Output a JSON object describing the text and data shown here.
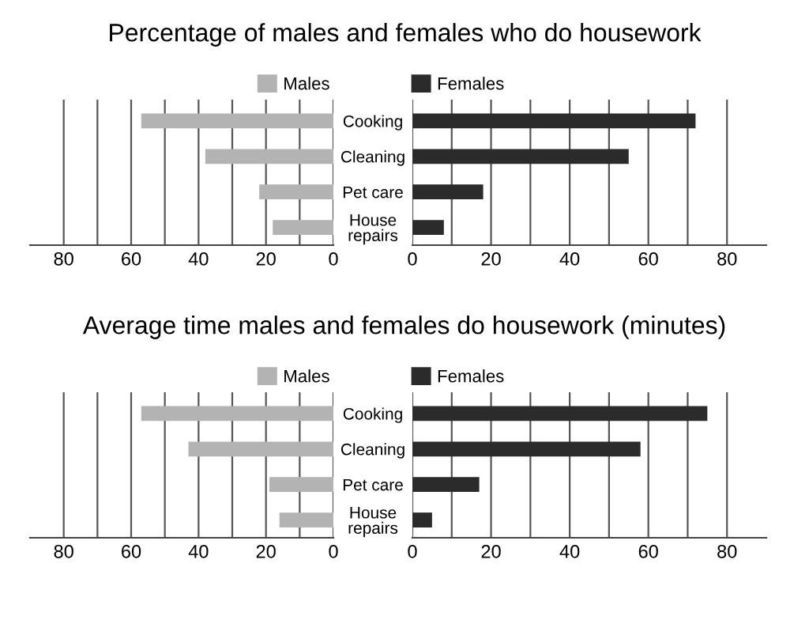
{
  "chart_data": [
    {
      "type": "bar",
      "orientation": "horizontal",
      "title": "Percentage of males and females who do housework",
      "categories": [
        "Cooking",
        "Cleaning",
        "Pet care",
        "House\nrepairs"
      ],
      "series": [
        {
          "name": "Males",
          "color": "#b3b3b3",
          "values": [
            57,
            38,
            22,
            18
          ]
        }
      ],
      "xlim": [
        90,
        0
      ],
      "xticks": [
        80,
        {
          "value": 70,
          "label": null
        },
        60,
        {
          "value": 50,
          "label": null
        },
        40,
        {
          "value": 30,
          "label": null
        },
        20,
        {
          "value": 10,
          "label": null
        },
        0
      ],
      "grid": "x",
      "legend": "top right"
    },
    {
      "type": "bar",
      "orientation": "horizontal",
      "categories": [
        null,
        null,
        null,
        null
      ],
      "series": [
        {
          "name": "Females",
          "color": "#2b2b2b",
          "values": [
            72,
            55,
            18,
            8
          ]
        }
      ],
      "xlim": [
        0,
        90
      ],
      "xticks": [
        0,
        {
          "value": 10,
          "label": null
        },
        20,
        {
          "value": 30,
          "label": null
        },
        40,
        {
          "value": 50,
          "label": null
        },
        60,
        {
          "value": 70,
          "label": null
        },
        80
      ],
      "grid": "x",
      "legend": "top left",
      "tick_labels": "x"
    },
    {
      "type": "bar",
      "orientation": "horizontal",
      "title": "Average time males and females do housework (minutes)",
      "categories": [
        "Cooking",
        "Cleaning",
        "Pet care",
        "House\nrepairs"
      ],
      "series": [
        {
          "name": "Males",
          "color": "#b3b3b3",
          "values": [
            57,
            43,
            19,
            16
          ]
        }
      ],
      "xlim": [
        90,
        0
      ],
      "xticks": [
        80,
        {
          "value": 70,
          "label": null
        },
        60,
        {
          "value": 50,
          "label": null
        },
        40,
        {
          "value": 30,
          "label": null
        },
        20,
        {
          "value": 10,
          "label": null
        },
        0
      ],
      "grid": "x",
      "legend": "top right"
    },
    {
      "type": "bar",
      "orientation": "horizontal",
      "categories": [
        null,
        null,
        null,
        null
      ],
      "series": [
        {
          "name": "Females",
          "color": "#2b2b2b",
          "values": [
            75,
            58,
            17,
            5
          ]
        }
      ],
      "xlim": [
        0,
        90
      ],
      "xticks": [
        0,
        {
          "value": 10,
          "label": null
        },
        20,
        {
          "value": 30,
          "label": null
        },
        40,
        {
          "value": 50,
          "label": null
        },
        60,
        {
          "value": 70,
          "label": null
        },
        80
      ],
      "grid": "x",
      "legend": "top left",
      "tick_labels": "x"
    }
  ]
}
